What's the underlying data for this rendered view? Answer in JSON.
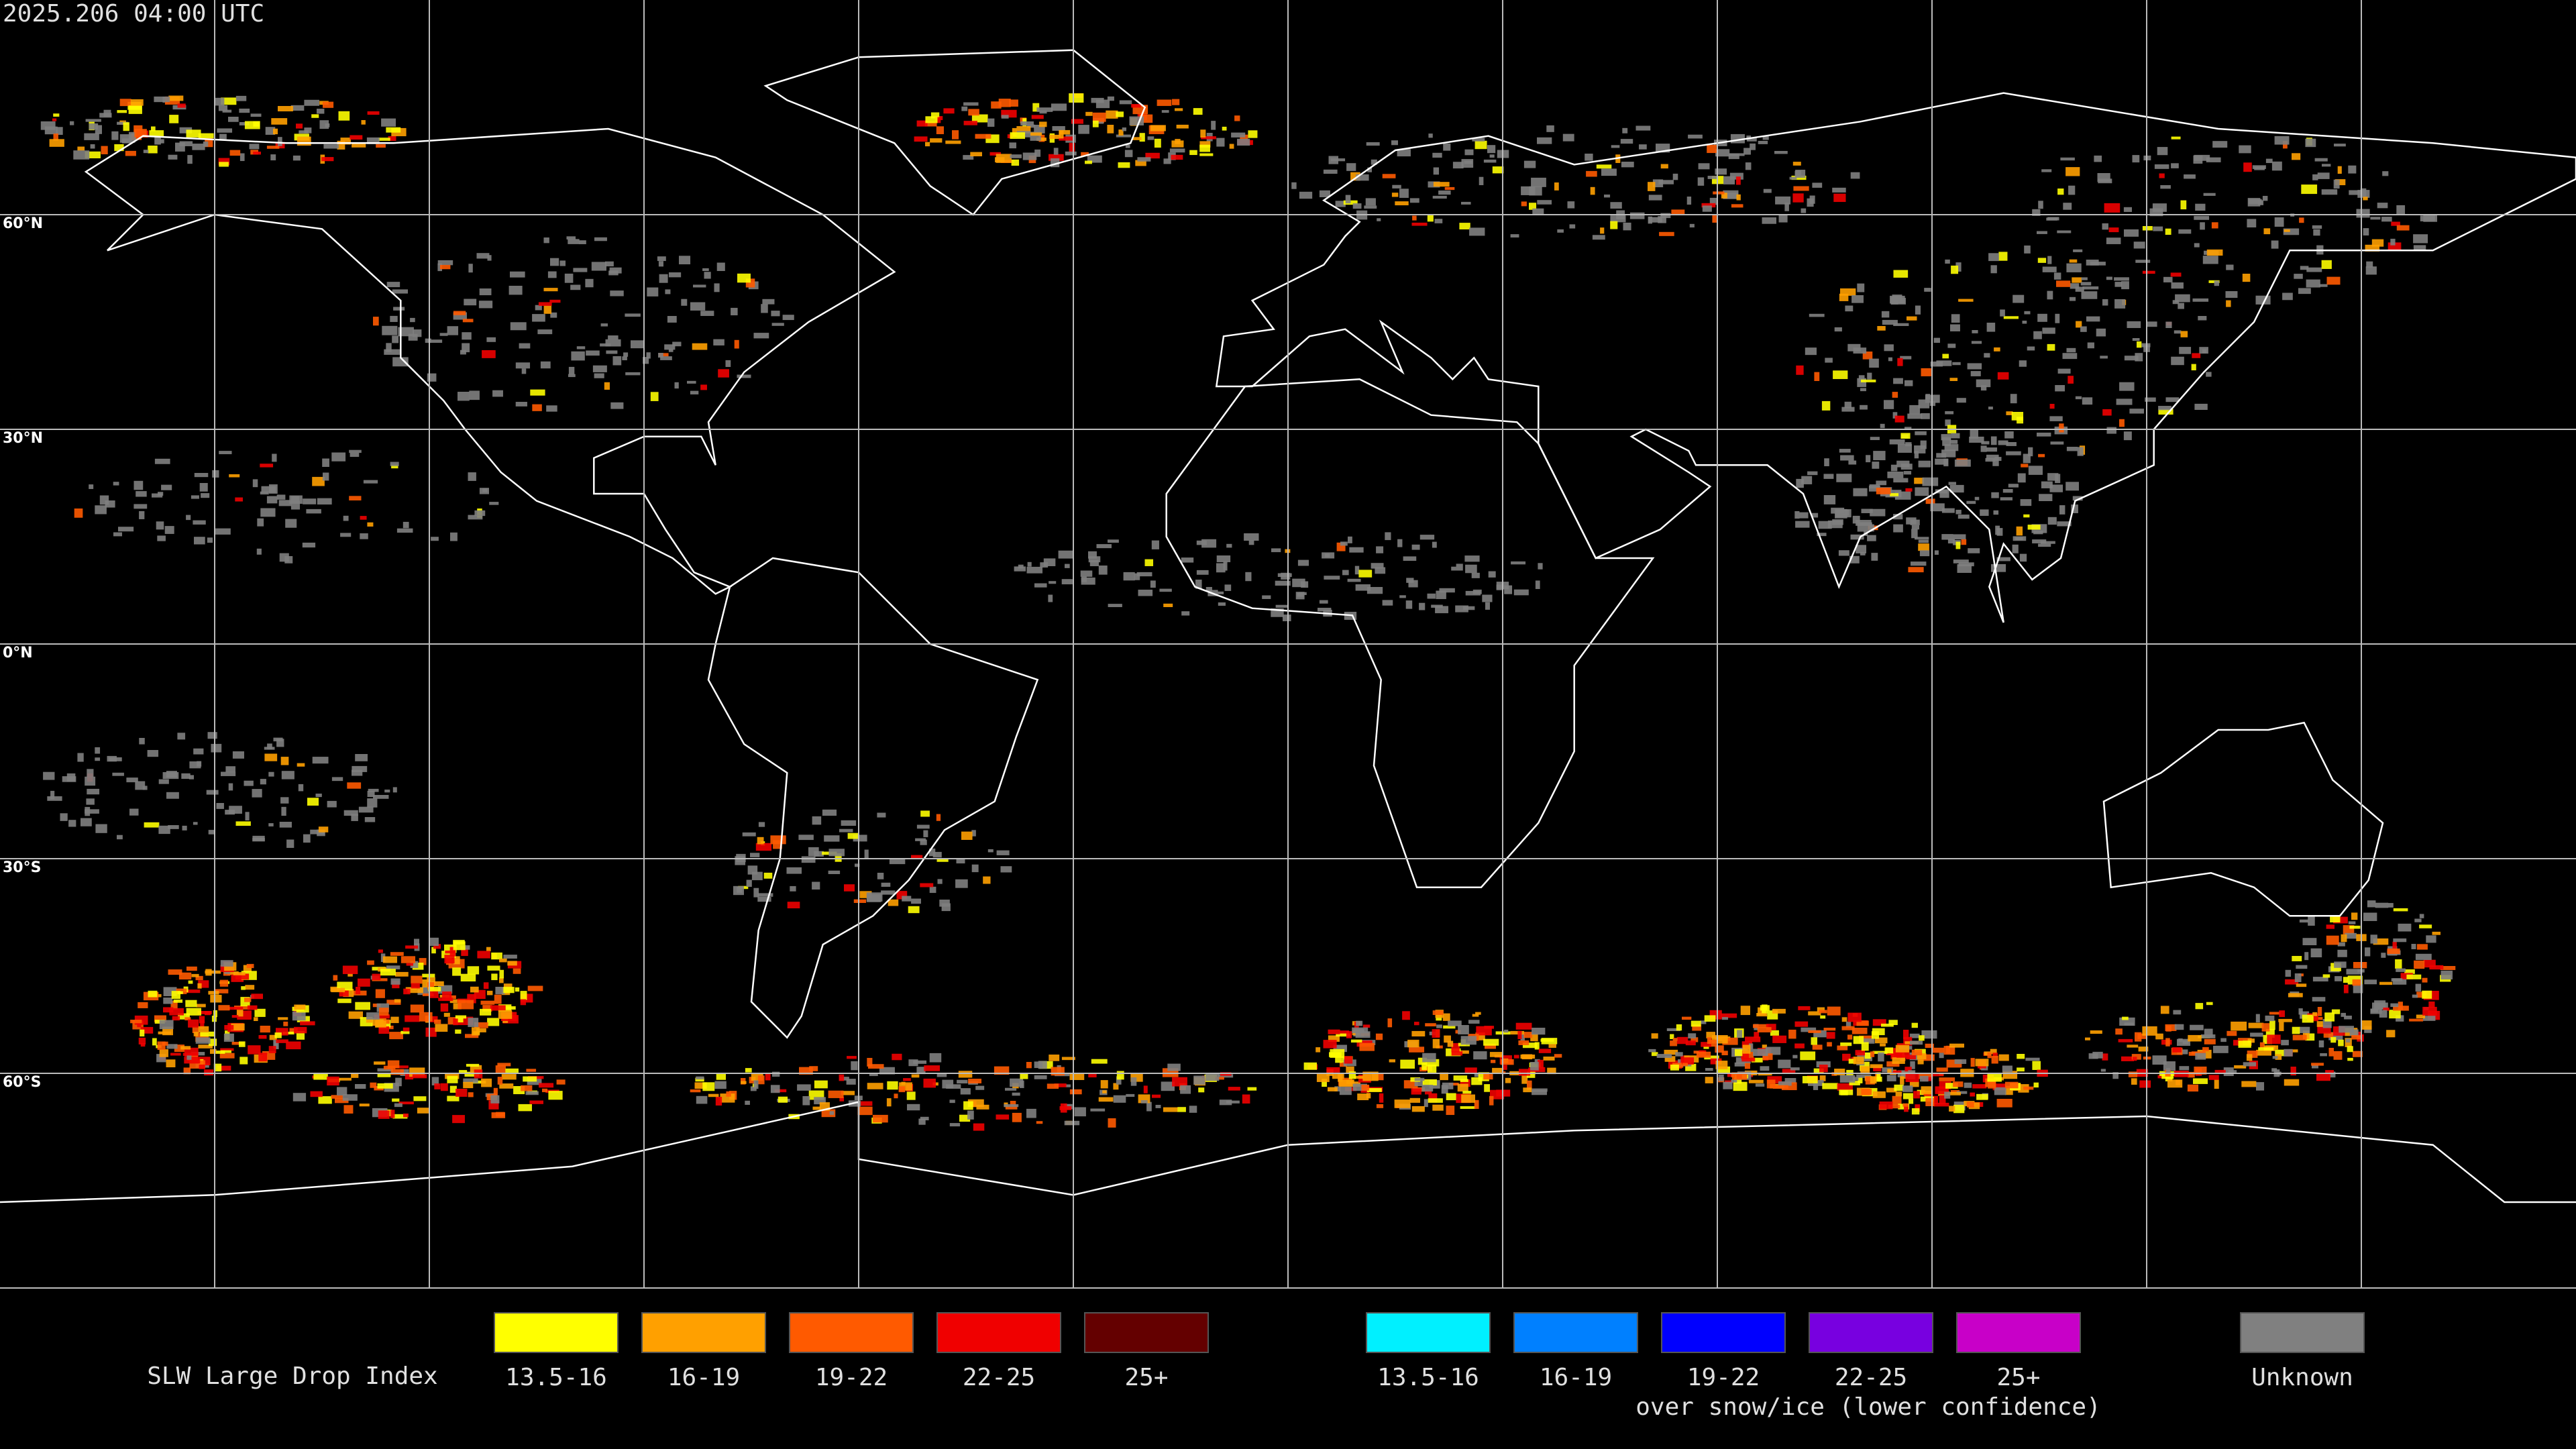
{
  "header": {
    "timestamp": "2025.206 04:00 UTC"
  },
  "map": {
    "lat_labels": [
      "60°N",
      "30°N",
      "0°N",
      "30°S",
      "60°S"
    ]
  },
  "legend": {
    "title": "SLW Large Drop Index",
    "items": [
      {
        "label": "13.5-16",
        "color": "#ffff00"
      },
      {
        "label": "16-19",
        "color": "#ffa000"
      },
      {
        "label": "19-22",
        "color": "#ff5a00"
      },
      {
        "label": "22-25",
        "color": "#f00000"
      },
      {
        "label": "25+",
        "color": "#640000"
      }
    ],
    "snow_items": [
      {
        "label": "13.5-16",
        "color": "#00f0ff"
      },
      {
        "label": "16-19",
        "color": "#0080ff"
      },
      {
        "label": "19-22",
        "color": "#0000ff"
      },
      {
        "label": "22-25",
        "color": "#7800e0"
      },
      {
        "label": "25+",
        "color": "#c800c8"
      }
    ],
    "snow_caption": "over snow/ice (lower confidence)",
    "unknown": {
      "label": "Unknown",
      "color": "#808080"
    }
  }
}
